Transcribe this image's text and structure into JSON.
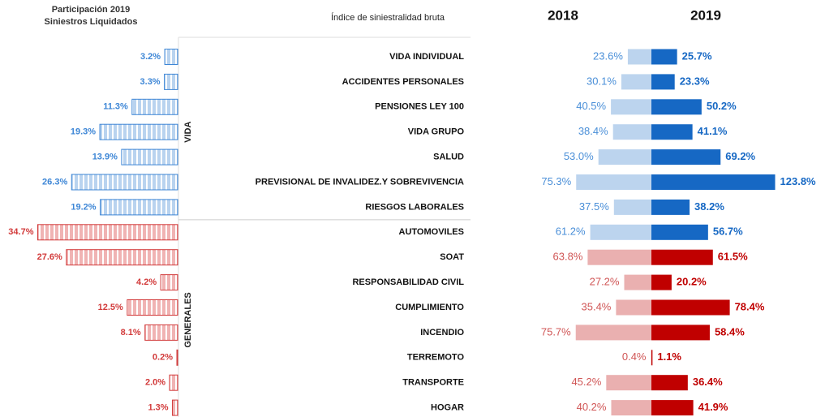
{
  "chart_data": [
    {
      "type": "bar",
      "title_lines": [
        "Participación 2019",
        "Siniestros Liquidados"
      ],
      "values": [
        3.2,
        3.3,
        11.3,
        19.3,
        13.9,
        26.3,
        19.2,
        34.7,
        27.6,
        4.2,
        12.5,
        8.1,
        0.2,
        2.0,
        1.3
      ],
      "value_labels": [
        "3.2%",
        "3.3%",
        "11.3%",
        "19.3%",
        "13.9%",
        "26.3%",
        "19.2%",
        "34.7%",
        "27.6%",
        "4.2%",
        "12.5%",
        "8.1%",
        "0.2%",
        "2.0%",
        "1.3%"
      ],
      "groups": [
        {
          "name": "VIDA",
          "count": 7,
          "color": "#3d86d6",
          "fill": "#b9d3ef"
        },
        {
          "name": "GENERALES",
          "count": 8,
          "color": "#d23a3a",
          "fill": "#f0b3b3"
        }
      ],
      "xlim": [
        0,
        35
      ]
    },
    {
      "type": "butterfly",
      "title": "Índice de siniestralidad bruta",
      "categories": [
        "VIDA INDIVIDUAL",
        "ACCIDENTES PERSONALES",
        "PENSIONES LEY 100",
        "VIDA GRUPO",
        "SALUD",
        "PREVISIONAL DE  INVALIDEZ.Y SOBREVIVENCIA",
        "RIESGOS LABORALES",
        "AUTOMOVILES",
        "SOAT",
        "RESPONSABILIDAD CIVIL",
        "CUMPLIMIENTO",
        "INCENDIO",
        "TERREMOTO",
        "TRANSPORTE",
        "HOGAR"
      ],
      "series": [
        {
          "name": "2018",
          "values": [
            23.6,
            30.1,
            40.5,
            38.4,
            53.0,
            75.3,
            37.5,
            61.2,
            63.8,
            27.2,
            35.4,
            75.7,
            0.4,
            45.2,
            40.2
          ],
          "value_labels": [
            "23.6%",
            "30.1%",
            "40.5%",
            "38.4%",
            "53.0%",
            "75.3%",
            "37.5%",
            "61.2%",
            "63.8%",
            "27.2%",
            "35.4%",
            "75.7%",
            "0.4%",
            "45.2%",
            "40.2%"
          ]
        },
        {
          "name": "2019",
          "values": [
            25.7,
            23.3,
            50.2,
            41.1,
            69.2,
            123.8,
            38.2,
            56.7,
            61.5,
            20.2,
            78.4,
            58.4,
            1.1,
            36.4,
            41.9
          ],
          "value_labels": [
            "25.7%",
            "23.3%",
            "50.2%",
            "41.1%",
            "69.2%",
            "123.8%",
            "38.2%",
            "56.7%",
            "61.5%",
            "20.2%",
            "78.4%",
            "58.4%",
            "1.1%",
            "36.4%",
            "41.9%"
          ]
        }
      ],
      "palettes": {
        "blue": {
          "2018": "#bcd4ee",
          "2018_label": "#4a8fd8",
          "2019": "#1668c4",
          "2019_label": "#1668c4"
        },
        "red": {
          "2018": "#eab0b0",
          "2018_label": "#d05555",
          "2019": "#c00000",
          "2019_label": "#c00000"
        }
      },
      "row_palette": [
        "blue",
        "blue",
        "blue",
        "blue",
        "blue",
        "blue",
        "blue",
        "blue",
        "red",
        "red",
        "red",
        "red",
        "red",
        "red",
        "red"
      ],
      "xlim": [
        0,
        125
      ]
    }
  ]
}
